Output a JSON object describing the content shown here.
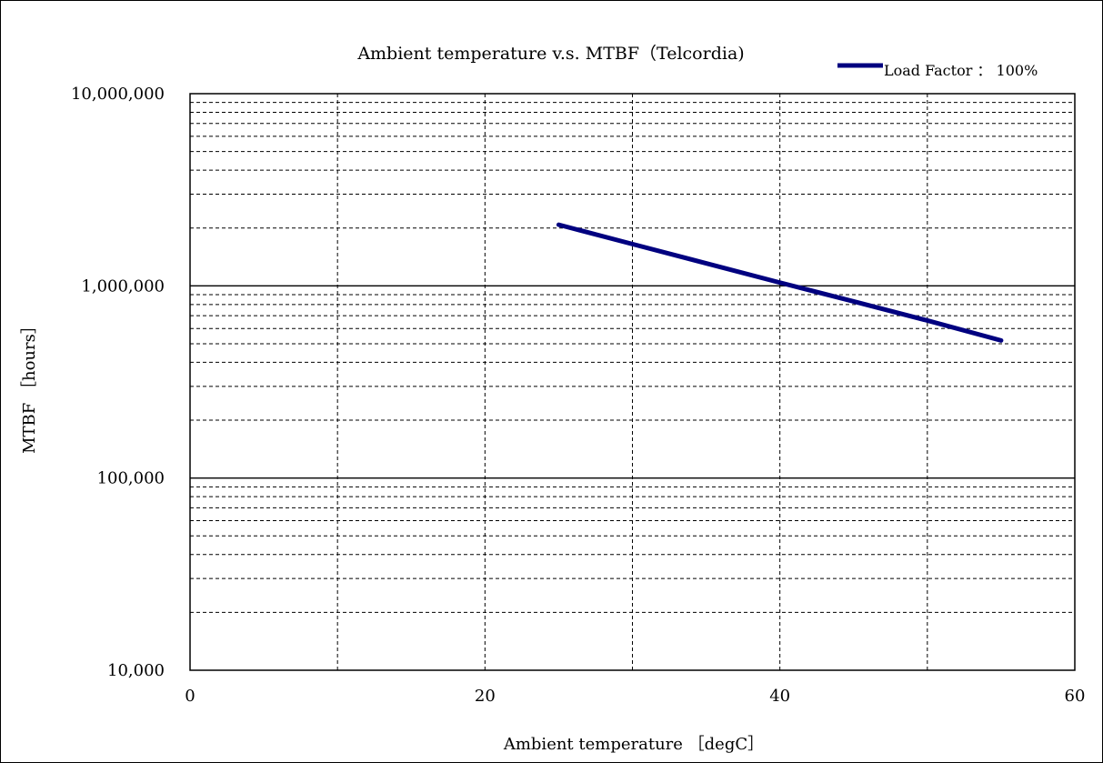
{
  "chart_data": {
    "type": "line",
    "title": "Ambient temperature  v.s.  MTBF（Telcordia)",
    "xlabel": "Ambient temperature ［degC］",
    "ylabel": "MTBF ［hours］",
    "x_scale": "linear",
    "y_scale": "log",
    "xlim": [
      0,
      60
    ],
    "ylim": [
      10000,
      10000000
    ],
    "x_ticks": [
      0,
      20,
      40,
      60
    ],
    "x_tick_labels": [
      "0",
      "20",
      "40",
      "60"
    ],
    "y_ticks": [
      10000,
      100000,
      1000000,
      10000000
    ],
    "y_tick_labels": [
      "10,000",
      "100,000",
      "1,000,000",
      "10,000,000"
    ],
    "grid": true,
    "legend_position": "top-right",
    "series": [
      {
        "name": "Load Factor ： 100%",
        "color": "#000080",
        "x": [
          25,
          30,
          35,
          40,
          45,
          50,
          55
        ],
        "y": [
          2080000,
          1650000,
          1310000,
          1040000,
          830000,
          660000,
          520000
        ]
      }
    ]
  }
}
